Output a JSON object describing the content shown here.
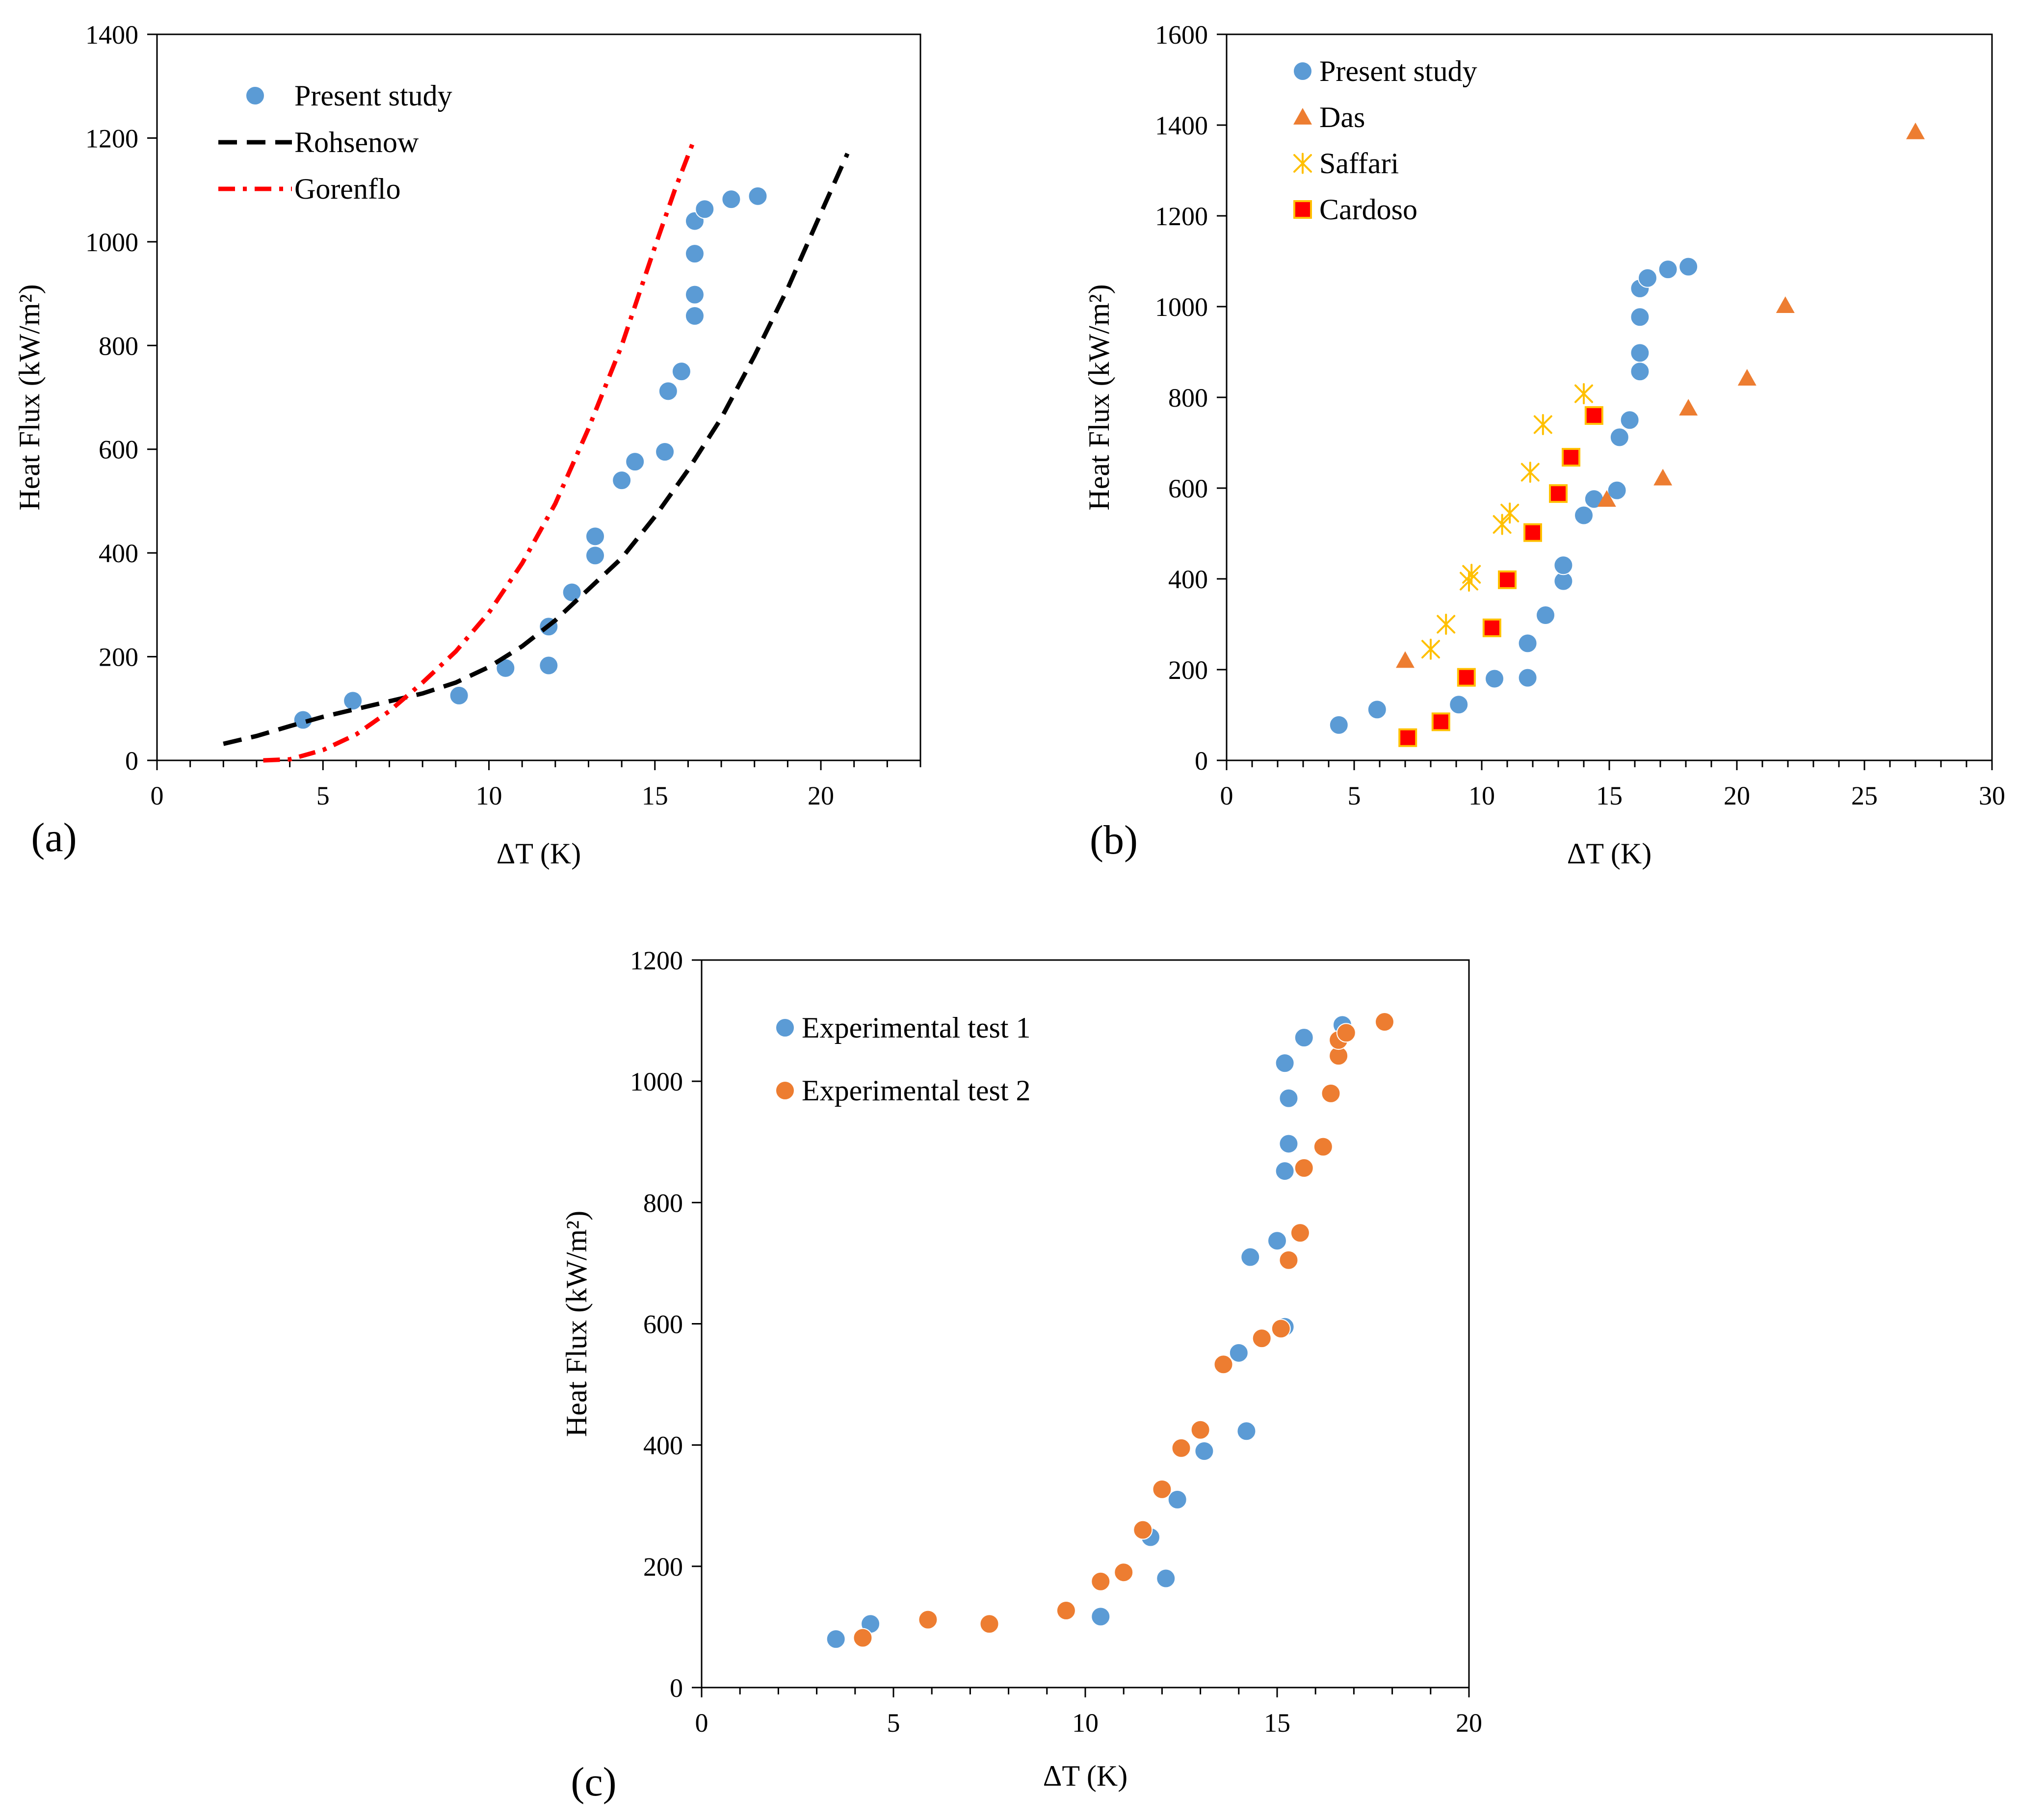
{
  "chart_data": [
    {
      "type": "scatter",
      "panel_label": "(a)",
      "xlabel": "ΔT (K)",
      "ylabel": "Heat Flux (kW/m²)",
      "xlim": [
        0,
        23
      ],
      "ylim": [
        0,
        1400
      ],
      "xticks": [
        0,
        5,
        10,
        15,
        20
      ],
      "yticks": [
        0,
        200,
        400,
        600,
        800,
        1000,
        1200,
        1400
      ],
      "xminor": 1,
      "legend_position": "top-left",
      "series": [
        {
          "name": "Present study",
          "kind": "points",
          "marker": "circle",
          "color": "#5b9bd5",
          "x": [
            4.4,
            5.9,
            9.1,
            10.5,
            11.8,
            11.8,
            12.5,
            13.2,
            13.2,
            14.0,
            14.4,
            15.3,
            15.4,
            15.8,
            16.2,
            16.2,
            16.2,
            16.2,
            16.5,
            17.3,
            18.1
          ],
          "y": [
            78,
            115,
            125,
            178,
            183,
            258,
            324,
            395,
            432,
            540,
            576,
            595,
            712,
            750,
            857,
            898,
            977,
            1040,
            1063,
            1082,
            1088
          ]
        },
        {
          "name": "Rohsenow",
          "kind": "line",
          "style": "dash",
          "color": "#000000",
          "x": [
            2,
            3,
            4,
            5,
            6,
            7,
            8,
            9,
            10,
            11,
            12,
            13,
            14,
            15,
            16,
            17,
            18,
            19,
            20,
            20.8
          ],
          "y": [
            32,
            47,
            66,
            84,
            99,
            114,
            129,
            150,
            180,
            220,
            270,
            330,
            390,
            470,
            560,
            660,
            780,
            910,
            1055,
            1170
          ]
        },
        {
          "name": "Gorenflo",
          "kind": "line",
          "style": "dashdot",
          "color": "#ff0000",
          "x": [
            3.2,
            4,
            5,
            6,
            7,
            8,
            9,
            10,
            11,
            12,
            13,
            14,
            15,
            15.6,
            16.2
          ],
          "y": [
            0,
            2,
            20,
            50,
            95,
            150,
            210,
            285,
            380,
            495,
            640,
            800,
            990,
            1100,
            1200
          ]
        }
      ]
    },
    {
      "type": "scatter",
      "panel_label": "(b)",
      "xlabel": "ΔT (K)",
      "ylabel": "Heat Flux (kW/m²)",
      "xlim": [
        0,
        30
      ],
      "ylim": [
        0,
        1600
      ],
      "xticks": [
        0,
        5,
        10,
        15,
        20,
        25,
        30
      ],
      "yticks": [
        0,
        200,
        400,
        600,
        800,
        1000,
        1200,
        1400,
        1600
      ],
      "xminor": 1,
      "legend_position": "top-left",
      "series": [
        {
          "name": "Present study",
          "kind": "points",
          "marker": "circle",
          "color": "#5b9bd5",
          "x": [
            4.4,
            5.9,
            9.1,
            10.5,
            11.8,
            11.8,
            12.5,
            13.2,
            13.2,
            14.0,
            14.4,
            15.3,
            15.4,
            15.8,
            16.2,
            16.2,
            16.2,
            16.2,
            16.5,
            17.3,
            18.1
          ],
          "y": [
            78,
            112,
            123,
            180,
            182,
            258,
            320,
            395,
            430,
            540,
            576,
            595,
            712,
            750,
            857,
            898,
            977,
            1040,
            1063,
            1082,
            1088
          ]
        },
        {
          "name": "Das",
          "kind": "points",
          "marker": "triangle",
          "color": "#ed7d31",
          "x": [
            7.0,
            14.9,
            17.1,
            18.1,
            20.4,
            21.9,
            27.0
          ],
          "y": [
            220,
            575,
            622,
            776,
            842,
            1002,
            1385
          ]
        },
        {
          "name": "Saffari",
          "kind": "points",
          "marker": "asterisk",
          "color": "#ffc000",
          "x": [
            8.0,
            8.6,
            9.5,
            9.6,
            10.8,
            11.1,
            11.9,
            12.4,
            14.0
          ],
          "y": [
            245,
            300,
            395,
            410,
            520,
            545,
            635,
            740,
            808
          ]
        },
        {
          "name": "Cardoso",
          "kind": "points",
          "marker": "square",
          "color": "#ff0000",
          "x": [
            7.1,
            8.4,
            9.4,
            10.4,
            11.0,
            12.0,
            13.0,
            13.5,
            14.4
          ],
          "y": [
            50,
            85,
            183,
            292,
            398,
            502,
            588,
            668,
            760
          ]
        }
      ]
    },
    {
      "type": "scatter",
      "panel_label": "(c)",
      "xlabel": "ΔT (K)",
      "ylabel": "Heat Flux (kW/m²)",
      "xlim": [
        0,
        20
      ],
      "ylim": [
        0,
        1200
      ],
      "xticks": [
        0,
        5,
        10,
        15,
        20
      ],
      "yticks": [
        0,
        200,
        400,
        600,
        800,
        1000,
        1200
      ],
      "xminor": 1,
      "legend_position": "top-left",
      "series": [
        {
          "name": "Experimental test 1",
          "kind": "points",
          "marker": "circle",
          "color": "#5b9bd5",
          "x": [
            3.5,
            4.4,
            10.4,
            11.7,
            12.1,
            12.4,
            13.1,
            14.0,
            14.2,
            14.3,
            15.0,
            15.2,
            15.2,
            15.3,
            15.3,
            15.2,
            15.7,
            16.7
          ],
          "y": [
            80,
            105,
            117,
            248,
            180,
            310,
            390,
            552,
            423,
            710,
            737,
            595,
            852,
            897,
            972,
            1030,
            1072,
            1093
          ]
        },
        {
          "name": "Experimental test 2",
          "kind": "points",
          "marker": "circle",
          "color": "#ed7d31",
          "x": [
            4.2,
            5.9,
            7.5,
            9.5,
            10.4,
            11.0,
            11.5,
            12.0,
            12.5,
            13.0,
            13.6,
            14.6,
            15.1,
            15.3,
            15.6,
            15.7,
            16.2,
            16.4,
            16.6,
            16.6,
            16.8,
            17.8
          ],
          "y": [
            82,
            112,
            105,
            127,
            175,
            190,
            260,
            327,
            395,
            425,
            533,
            576,
            592,
            705,
            750,
            857,
            892,
            980,
            1042,
            1068,
            1080,
            1098
          ]
        }
      ]
    }
  ]
}
